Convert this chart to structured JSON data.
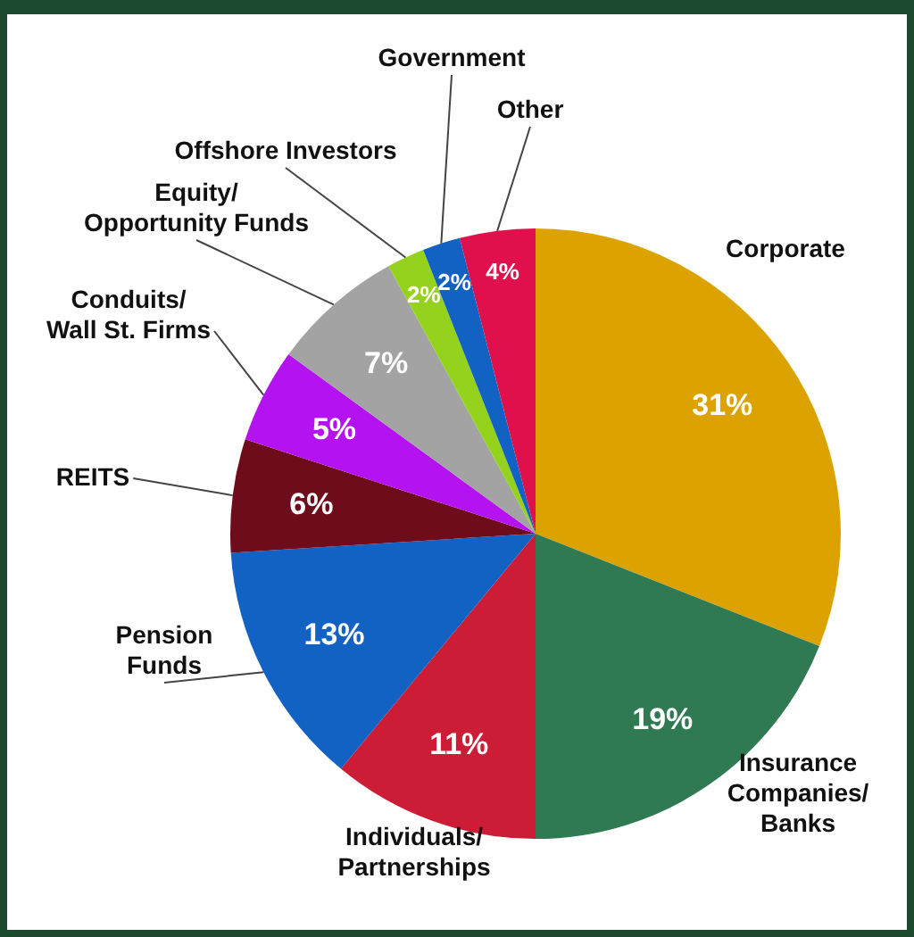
{
  "chart_data": {
    "type": "pie",
    "categories": [
      "Corporate",
      "Insurance\nCompanies/\nBanks",
      "Individuals/\nPartnerships",
      "Pension\nFunds",
      "REITS",
      "Conduits/\nWall St. Firms",
      "Equity/\nOpportunity Funds",
      "Offshore Investors",
      "Government",
      "Other"
    ],
    "values": [
      31,
      19,
      11,
      13,
      6,
      5,
      7,
      2,
      2,
      4
    ],
    "value_labels": [
      "31%",
      "19%",
      "11%",
      "13%",
      "6%",
      "5%",
      "7%",
      "2%",
      "2%",
      "4%"
    ],
    "colors": [
      "#dca300",
      "#2f7a52",
      "#cc1c36",
      "#1262c4",
      "#6e0c1c",
      "#b412f0",
      "#a3a3a3",
      "#94d21e",
      "#1262c4",
      "#e0104c"
    ],
    "legend": false
  }
}
